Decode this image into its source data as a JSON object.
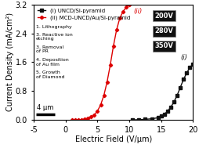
{
  "chart_data": {
    "type": "line",
    "xlabel": "Electric Field (V/μm)",
    "ylabel": "Current Density (mA/cm²)",
    "xlim": [
      -5,
      20
    ],
    "xticks": [
      -5,
      0,
      5,
      10,
      15,
      20
    ],
    "ylim": [
      0,
      3.2
    ],
    "yticks": [
      0.0,
      0.8,
      1.6,
      2.4,
      3.2
    ],
    "legend": "upper left",
    "series": [
      {
        "name": "(i) UNCD/Si-pyramid",
        "label": "(i)",
        "color": "#111111",
        "marker": "square",
        "line_style": "solid",
        "x": [
          10.5,
          11.5,
          12.5,
          13.5,
          14.5,
          15.0,
          15.5,
          16.0,
          16.5,
          17.0,
          17.5,
          18.0,
          18.5,
          19.0,
          19.5,
          20.0
        ],
        "values": [
          0.0,
          0.005,
          0.015,
          0.03,
          0.06,
          0.1,
          0.16,
          0.24,
          0.35,
          0.5,
          0.68,
          0.9,
          1.12,
          1.3,
          1.45,
          1.55
        ]
      },
      {
        "name": "(ii) MCD-UNCD/Au/Si-pyramid",
        "label": "(ii)",
        "color": "#dd0000",
        "marker": "diamond",
        "line_style": "solid",
        "x": [
          1.0,
          1.5,
          2.0,
          2.5,
          3.0,
          3.5,
          4.0,
          4.5,
          5.0,
          5.5,
          6.0,
          6.5,
          7.0,
          7.5,
          8.0,
          8.5,
          9.0,
          9.5,
          10.0
        ],
        "values": [
          0.0,
          0.0,
          0.005,
          0.01,
          0.02,
          0.04,
          0.08,
          0.14,
          0.25,
          0.42,
          0.68,
          1.05,
          1.52,
          2.05,
          2.5,
          2.82,
          3.0,
          3.12,
          3.2
        ]
      }
    ],
    "scale_label": "4 μm",
    "voltage_labels": [
      "200V",
      "280V",
      "350V"
    ],
    "step_labels": [
      "1. Lithography",
      "3. Reactive ion\netching",
      "3. Removal\nof PR",
      "4. Deposition\nof Au film",
      "5. Growth\nof Diamond"
    ]
  }
}
